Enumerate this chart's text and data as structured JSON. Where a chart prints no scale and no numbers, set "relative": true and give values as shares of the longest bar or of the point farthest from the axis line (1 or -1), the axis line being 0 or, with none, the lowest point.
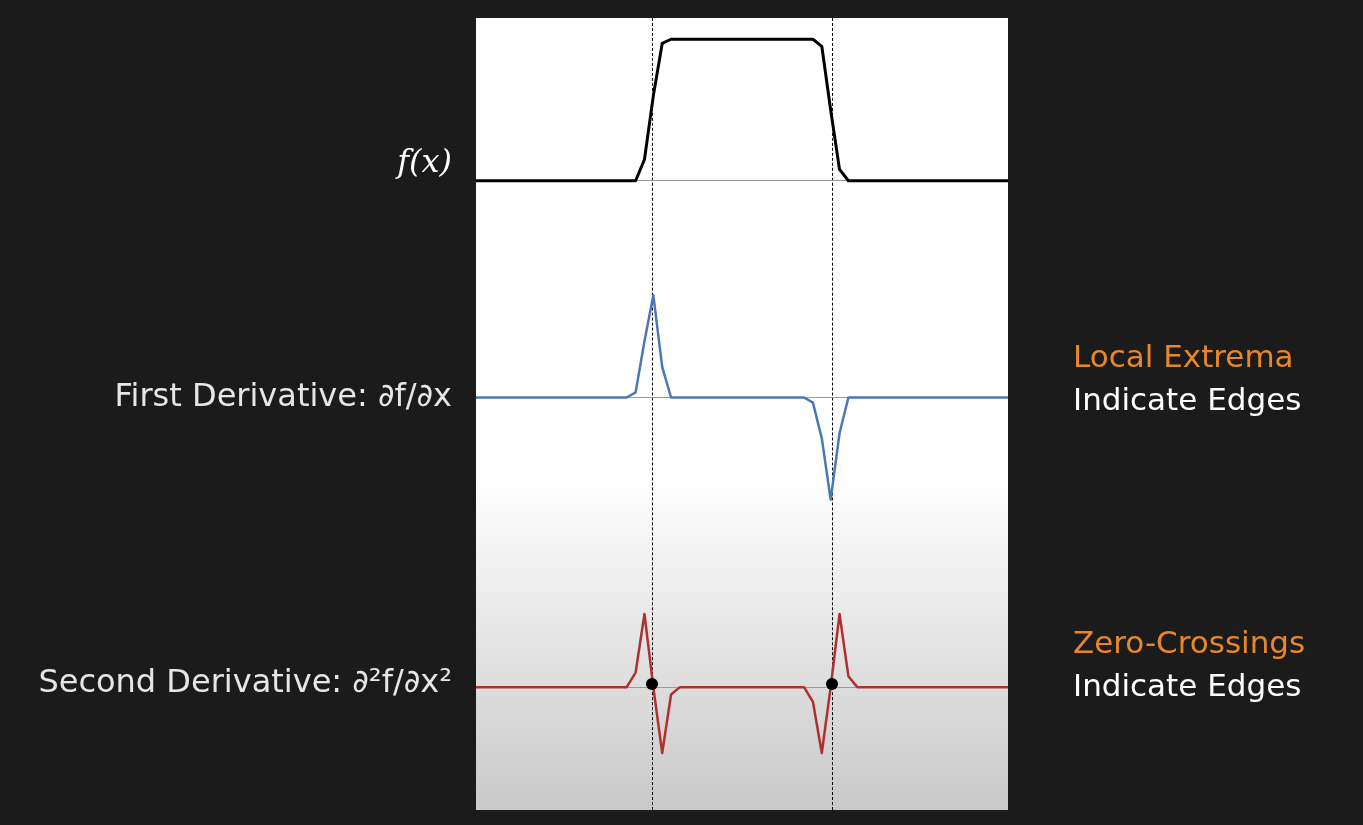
{
  "chart_data": [
    {
      "type": "line",
      "ylabel": "f(x)",
      "relative": true,
      "tick_labels": false,
      "categories": [
        null,
        null,
        null,
        null,
        null,
        null,
        null,
        null,
        null,
        null,
        null,
        null,
        null,
        null,
        null,
        null,
        null,
        null,
        null,
        null,
        null,
        null,
        null,
        null,
        null,
        null,
        null,
        null,
        null,
        null,
        null,
        null,
        null,
        null,
        null,
        null,
        null,
        null,
        null,
        null,
        null,
        null,
        null,
        null,
        null,
        null,
        null,
        null,
        null,
        null,
        null,
        null,
        null,
        null,
        null,
        null,
        null,
        null,
        null,
        null,
        null
      ],
      "series": [
        {
          "color": "#000000",
          "values": [
            0,
            0,
            0,
            0,
            0,
            0,
            0,
            0,
            0,
            0,
            0,
            0,
            0,
            0,
            0,
            0,
            0,
            0,
            0,
            0.15,
            0.6,
            0.97,
            1,
            1,
            1,
            1,
            1,
            1,
            1,
            1,
            1,
            1,
            1,
            1,
            1,
            1,
            1,
            1,
            1,
            0.95,
            0.5,
            0.08,
            0,
            0,
            0,
            0,
            0,
            0,
            0,
            0,
            0,
            0,
            0,
            0,
            0,
            0,
            0,
            0,
            0,
            0,
            0
          ]
        }
      ]
    },
    {
      "type": "line",
      "ylabel": "First Derivative: ∂f/∂x",
      "relative": true,
      "tick_labels": false,
      "annotations": [
        "Local Extrema",
        "Indicate Edges"
      ],
      "categories": [
        null,
        null,
        null,
        null,
        null,
        null,
        null,
        null,
        null,
        null,
        null,
        null,
        null,
        null,
        null,
        null,
        null,
        null,
        null,
        null,
        null,
        null,
        null,
        null,
        null,
        null,
        null,
        null,
        null,
        null,
        null,
        null,
        null,
        null,
        null,
        null,
        null,
        null,
        null,
        null,
        null,
        null,
        null,
        null,
        null,
        null,
        null,
        null,
        null,
        null,
        null,
        null,
        null,
        null,
        null,
        null,
        null,
        null,
        null,
        null,
        null
      ],
      "series": [
        {
          "color": "#4a78b5",
          "values": [
            0,
            0,
            0,
            0,
            0,
            0,
            0,
            0,
            0,
            0,
            0,
            0,
            0,
            0,
            0,
            0,
            0,
            0,
            0.05,
            0.55,
            1,
            0.3,
            0,
            0,
            0,
            0,
            0,
            0,
            0,
            0,
            0,
            0,
            0,
            0,
            0,
            0,
            0,
            0,
            -0.05,
            -0.4,
            -1,
            -0.35,
            0,
            0,
            0,
            0,
            0,
            0,
            0,
            0,
            0,
            0,
            0,
            0,
            0,
            0,
            0,
            0,
            0,
            0,
            0
          ]
        }
      ]
    },
    {
      "type": "line",
      "ylabel": "Second Derivative: ∂²f/∂x²",
      "relative": true,
      "tick_labels": false,
      "annotations": [
        "Zero-Crossings",
        "Indicate Edges"
      ],
      "categories": [
        null,
        null,
        null,
        null,
        null,
        null,
        null,
        null,
        null,
        null,
        null,
        null,
        null,
        null,
        null,
        null,
        null,
        null,
        null,
        null,
        null,
        null,
        null,
        null,
        null,
        null,
        null,
        null,
        null,
        null,
        null,
        null,
        null,
        null,
        null,
        null,
        null,
        null,
        null,
        null,
        null,
        null,
        null,
        null,
        null,
        null,
        null,
        null,
        null,
        null,
        null,
        null,
        null,
        null,
        null,
        null,
        null,
        null,
        null,
        null,
        null
      ],
      "series": [
        {
          "color": "#b03030",
          "values": [
            0,
            0,
            0,
            0,
            0,
            0,
            0,
            0,
            0,
            0,
            0,
            0,
            0,
            0,
            0,
            0,
            0,
            0,
            0.2,
            1,
            0,
            -0.9,
            -0.1,
            0,
            0,
            0,
            0,
            0,
            0,
            0,
            0,
            0,
            0,
            0,
            0,
            0,
            0,
            0,
            -0.2,
            -0.9,
            0,
            1,
            0.15,
            0,
            0,
            0,
            0,
            0,
            0,
            0,
            0,
            0,
            0,
            0,
            0,
            0,
            0,
            0,
            0,
            0,
            0
          ]
        }
      ]
    }
  ]
}
